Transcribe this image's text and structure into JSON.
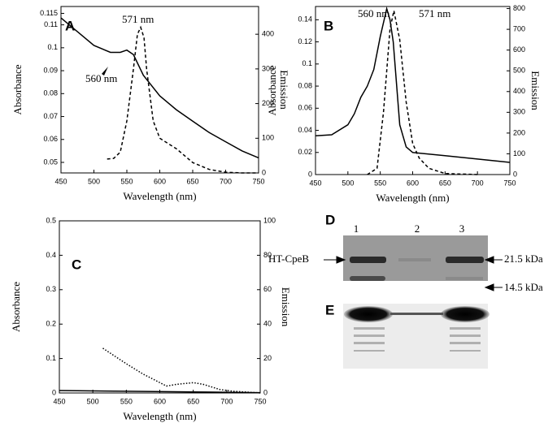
{
  "chart_data": [
    {
      "type": "line",
      "panel": "A",
      "xlabel": "Wavelength (nm)",
      "ylabel": "Absorbance",
      "y2label": "Emission",
      "xlim": [
        450,
        750
      ],
      "xticks": [
        450,
        500,
        550,
        600,
        650,
        700,
        750
      ],
      "ylim": [
        0.0454,
        0.118
      ],
      "yticks": [
        0.05,
        0.06,
        0.07,
        0.08,
        0.09,
        0.1,
        0.11,
        0.115
      ],
      "y2lim": [
        0,
        480
      ],
      "y2ticks": [
        0,
        100,
        200,
        300,
        400
      ],
      "annotations": [
        "571 nm",
        "560 nm"
      ],
      "series": [
        {
          "name": "Absorbance",
          "color": "#000000",
          "style": "solid",
          "x": [
            450,
            475,
            500,
            525,
            540,
            550,
            560,
            575,
            600,
            625,
            650,
            675,
            700,
            725,
            750
          ],
          "values": [
            0.113,
            0.107,
            0.101,
            0.098,
            0.098,
            0.099,
            0.097,
            0.088,
            0.079,
            0.073,
            0.068,
            0.063,
            0.059,
            0.055,
            0.052
          ]
        },
        {
          "name": "Emission",
          "color": "#000000",
          "style": "dashed",
          "axis": "y2",
          "x": [
            520,
            530,
            540,
            550,
            560,
            566,
            571,
            576,
            580,
            590,
            600,
            625,
            650,
            675,
            700,
            725,
            750
          ],
          "values": [
            40,
            42,
            60,
            150,
            300,
            400,
            420,
            390,
            300,
            150,
            100,
            70,
            30,
            10,
            2,
            0,
            0
          ]
        }
      ]
    },
    {
      "type": "line",
      "panel": "B",
      "xlabel": "Wavelength (nm)",
      "ylabel": "Absorbance",
      "y2label": "Emission",
      "xlim": [
        450,
        750
      ],
      "xticks": [
        450,
        500,
        550,
        600,
        650,
        700,
        750
      ],
      "ylim": [
        0,
        0.152
      ],
      "yticks": [
        0,
        0.02,
        0.04,
        0.06,
        0.08,
        0.1,
        0.12,
        0.14
      ],
      "y2lim": [
        0,
        810
      ],
      "y2ticks": [
        0,
        100,
        200,
        300,
        400,
        500,
        600,
        700,
        800
      ],
      "annotations": [
        "560 nm",
        "571 nm"
      ],
      "series": [
        {
          "name": "Absorbance",
          "color": "#000000",
          "style": "solid",
          "x": [
            450,
            475,
            500,
            510,
            520,
            530,
            540,
            550,
            560,
            565,
            570,
            580,
            590,
            600,
            650,
            700,
            750
          ],
          "values": [
            0.035,
            0.036,
            0.045,
            0.055,
            0.07,
            0.08,
            0.095,
            0.125,
            0.15,
            0.14,
            0.12,
            0.045,
            0.025,
            0.02,
            0.017,
            0.014,
            0.011
          ]
        },
        {
          "name": "Emission",
          "color": "#000000",
          "style": "dashed",
          "axis": "y2",
          "x": [
            530,
            545,
            555,
            565,
            571,
            580,
            590,
            600,
            610,
            625,
            650,
            700
          ],
          "values": [
            0,
            30,
            300,
            700,
            790,
            650,
            350,
            150,
            80,
            30,
            5,
            0
          ]
        }
      ]
    },
    {
      "type": "line",
      "panel": "C",
      "xlabel": "Wavelength (nm)",
      "ylabel": "Absorbance",
      "y2label": "Emission",
      "xlim": [
        450,
        750
      ],
      "xticks": [
        450,
        500,
        550,
        600,
        650,
        700,
        750
      ],
      "ylim": [
        0,
        0.5
      ],
      "yticks": [
        0,
        0.1,
        0.2,
        0.3,
        0.4,
        0.5
      ],
      "y2lim": [
        0,
        100
      ],
      "y2ticks": [
        0,
        20,
        40,
        60,
        80,
        100
      ],
      "annotations": [],
      "series": [
        {
          "name": "Absorbance",
          "color": "#000000",
          "style": "solid",
          "x": [
            450,
            550,
            650,
            750
          ],
          "values": [
            0.007,
            0.005,
            0.003,
            0.001
          ]
        },
        {
          "name": "Emission",
          "color": "#000000",
          "style": "dotted",
          "axis": "y2",
          "x": [
            515,
            550,
            575,
            590,
            610,
            625,
            650,
            665,
            690,
            710,
            750
          ],
          "values": [
            26,
            17,
            11,
            8,
            4,
            5,
            6,
            5,
            2,
            1,
            0
          ]
        }
      ]
    }
  ],
  "gel_d": {
    "label": "D",
    "lanes": [
      "1",
      "2",
      "3"
    ],
    "band_label": "HT-CpeB",
    "markers": [
      "21.5 kDa",
      "14.5 kDa"
    ]
  },
  "gel_e": {
    "label": "E"
  }
}
